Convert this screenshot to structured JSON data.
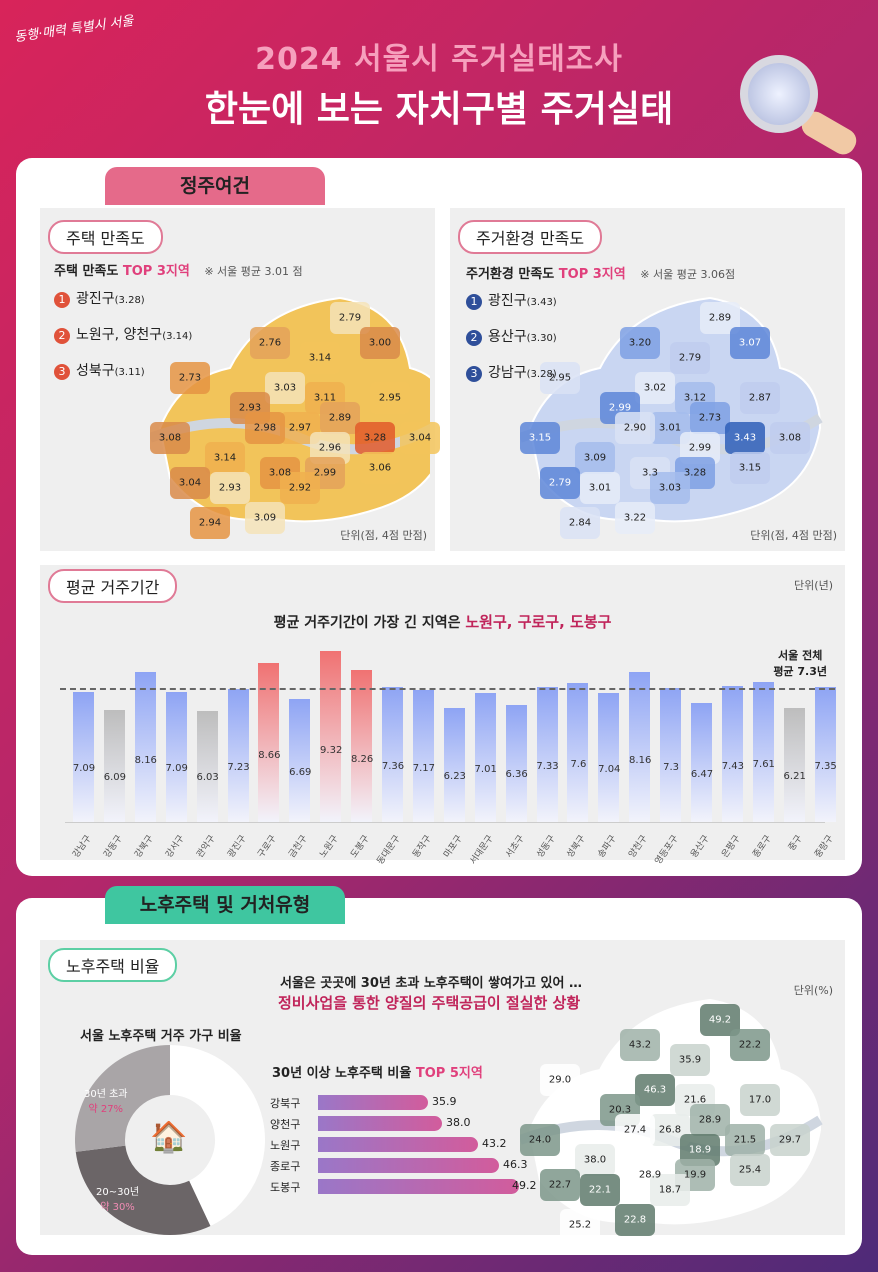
{
  "header": {
    "logo": "동행·매력 특별시 서울",
    "title_line1": "2024 서울시 주거실태조사",
    "title_line2": "한눈에 보는 자치구별 주거실태"
  },
  "section1": {
    "tab": "정주여건",
    "housing": {
      "pill": "주택 만족도",
      "heading": "주택 만족도",
      "top": "TOP 3지역",
      "note": "※ 서울 평균 3.01 점",
      "ranks": [
        {
          "n": "1",
          "name": "광진구",
          "v": "(3.28)"
        },
        {
          "n": "2",
          "name": "노원구, 양천구",
          "v": "(3.14)"
        },
        {
          "n": "3",
          "name": "성북구",
          "v": "(3.11)"
        }
      ],
      "map_values": [
        "2.79",
        "2.76",
        "3.14",
        "3.00",
        "3.11",
        "2.73",
        "3.03",
        "2.89",
        "2.95",
        "2.93",
        "2.97",
        "2.98",
        "2.96",
        "3.28",
        "3.04",
        "3.08",
        "3.14",
        "3.08",
        "2.93",
        "2.99",
        "3.06",
        "3.04",
        "2.92",
        "2.94",
        "3.09"
      ],
      "unit": "단위(점, 4점 만점)",
      "color": "#e08a3c"
    },
    "env": {
      "pill": "주거환경 만족도",
      "heading": "주거환경 만족도",
      "top": "TOP 3지역",
      "note": "※ 서울 평균 3.06점",
      "ranks": [
        {
          "n": "1",
          "name": "광진구",
          "v": "(3.43)"
        },
        {
          "n": "2",
          "name": "용산구",
          "v": "(3.30)"
        },
        {
          "n": "3",
          "name": "강남구",
          "v": "(3.28)"
        }
      ],
      "map_values": [
        "2.89",
        "3.20",
        "2.79",
        "3.07",
        "3.12",
        "2.95",
        "3.02",
        "2.73",
        "2.87",
        "2.99",
        "3.01",
        "2.90",
        "2.99",
        "3.43",
        "3.08",
        "3.15",
        "3.09",
        "3.3",
        "3.01",
        "3.28",
        "3.15",
        "2.79",
        "3.03",
        "2.84",
        "3.22"
      ],
      "unit": "단위(점, 4점 만점)",
      "color": "#4a74d0"
    },
    "residence": {
      "pill": "평균 거주기간",
      "unit": "단위(년)",
      "headline": "평균 거주기간이 가장 긴 지역은",
      "highlight": "노원구, 구로구, 도봉구",
      "avg_label1": "서울 전체",
      "avg_label2": "평균 7.3년"
    }
  },
  "chart_data": {
    "type": "bar",
    "ylim": [
      0,
      10
    ],
    "reference_line": 7.3,
    "categories": [
      "강남구",
      "강동구",
      "강북구",
      "강서구",
      "관악구",
      "광진구",
      "구로구",
      "금천구",
      "노원구",
      "도봉구",
      "동대문구",
      "동작구",
      "마포구",
      "서대문구",
      "서초구",
      "성동구",
      "성북구",
      "송파구",
      "양천구",
      "영등포구",
      "용산구",
      "은평구",
      "종로구",
      "중구",
      "중랑구"
    ],
    "values": [
      7.09,
      6.09,
      8.16,
      7.09,
      6.03,
      7.23,
      8.66,
      6.69,
      9.32,
      8.26,
      7.36,
      7.17,
      6.23,
      7.01,
      6.36,
      7.33,
      7.6,
      7.04,
      8.16,
      7.3,
      6.47,
      7.43,
      7.61,
      6.21,
      7.35
    ],
    "value_labels": [
      "7.09",
      "6.09",
      "8.16",
      "7.09",
      "6.03",
      "7.23",
      "8.66",
      "6.69",
      "9.32",
      "8.26",
      "7.36",
      "7.17",
      "6.23",
      "7.01",
      "6.36",
      "7.33",
      "7.6",
      "7.04",
      "8.16",
      "7.3",
      "6.47",
      "7.43",
      "7.61",
      "6.21",
      "7.35"
    ],
    "colors": {
      "normal": "#8ea4f4",
      "low": "#bdbdbd",
      "high": "#f07272"
    }
  },
  "section2": {
    "tab": "노후주택 및 거처유형",
    "pill": "노후주택 비율",
    "line1": "서울은 곳곳에 30년 초과 노후주택이 쌓여가고 있어 …",
    "line2": "정비사업을 통한 양질의 주택공급이 절실한 상황",
    "unit": "단위(%)",
    "donut": {
      "title": "서울 노후주택 거주 가구 비율",
      "segments": [
        {
          "label": "30년 초과",
          "value": "약 27%",
          "pct": 27,
          "color": "#a9a5a7"
        },
        {
          "label": "20~30년",
          "value": "약 30%",
          "pct": 30,
          "color": "#6b6567"
        }
      ]
    },
    "top5": {
      "title": "30년 이상 노후주택 비율",
      "top": "TOP 5지역",
      "items": [
        {
          "name": "강북구",
          "v": "35.9"
        },
        {
          "name": "양천구",
          "v": "38.0"
        },
        {
          "name": "노원구",
          "v": "43.2"
        },
        {
          "name": "종로구",
          "v": "46.3"
        },
        {
          "name": "도봉구",
          "v": "49.2"
        }
      ]
    },
    "map_values": [
      "49.2",
      "43.2",
      "35.9",
      "22.2",
      "21.6",
      "29.0",
      "46.3",
      "28.9",
      "17.0",
      "20.3",
      "26.8",
      "27.4",
      "18.9",
      "21.5",
      "29.7",
      "24.0",
      "38.0",
      "28.9",
      "22.1",
      "19.9",
      "25.4",
      "22.7",
      "18.7",
      "25.2",
      "22.8"
    ]
  }
}
